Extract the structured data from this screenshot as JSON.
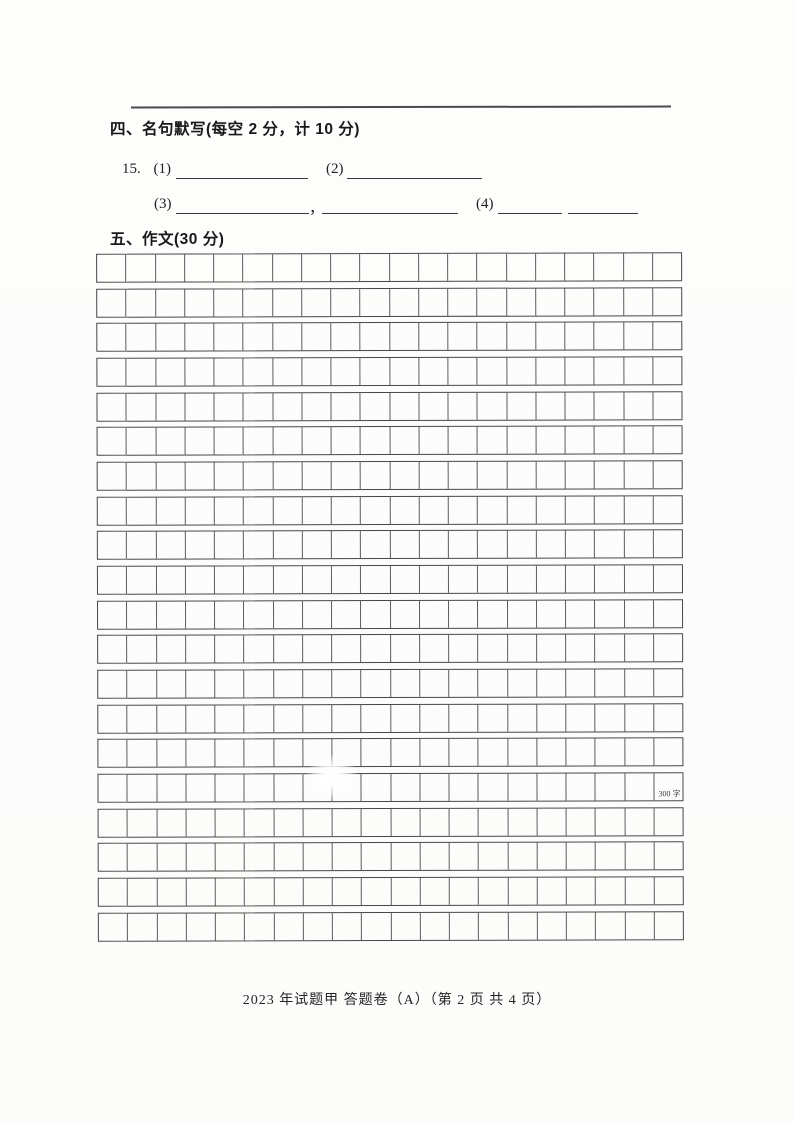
{
  "section4": {
    "title": "四、名句默写(每空 2 分，计 10 分)",
    "question_number": "15.",
    "blank1_label": "(1)",
    "blank2_label": "(2)",
    "blank3_label": "(3)",
    "comma": "，",
    "blank4_label": "(4)"
  },
  "section5": {
    "title": "五、作文(30 分)"
  },
  "essay_grid": {
    "rows": 20,
    "cols": 20,
    "total_cells": 400,
    "cell_marker": {
      "label": "300 字",
      "row": 16,
      "col": 20
    },
    "line_color": "#474747"
  },
  "footer": {
    "text": "2023 年试题甲 答题卷（A）（第 2 页 共 4 页）"
  }
}
